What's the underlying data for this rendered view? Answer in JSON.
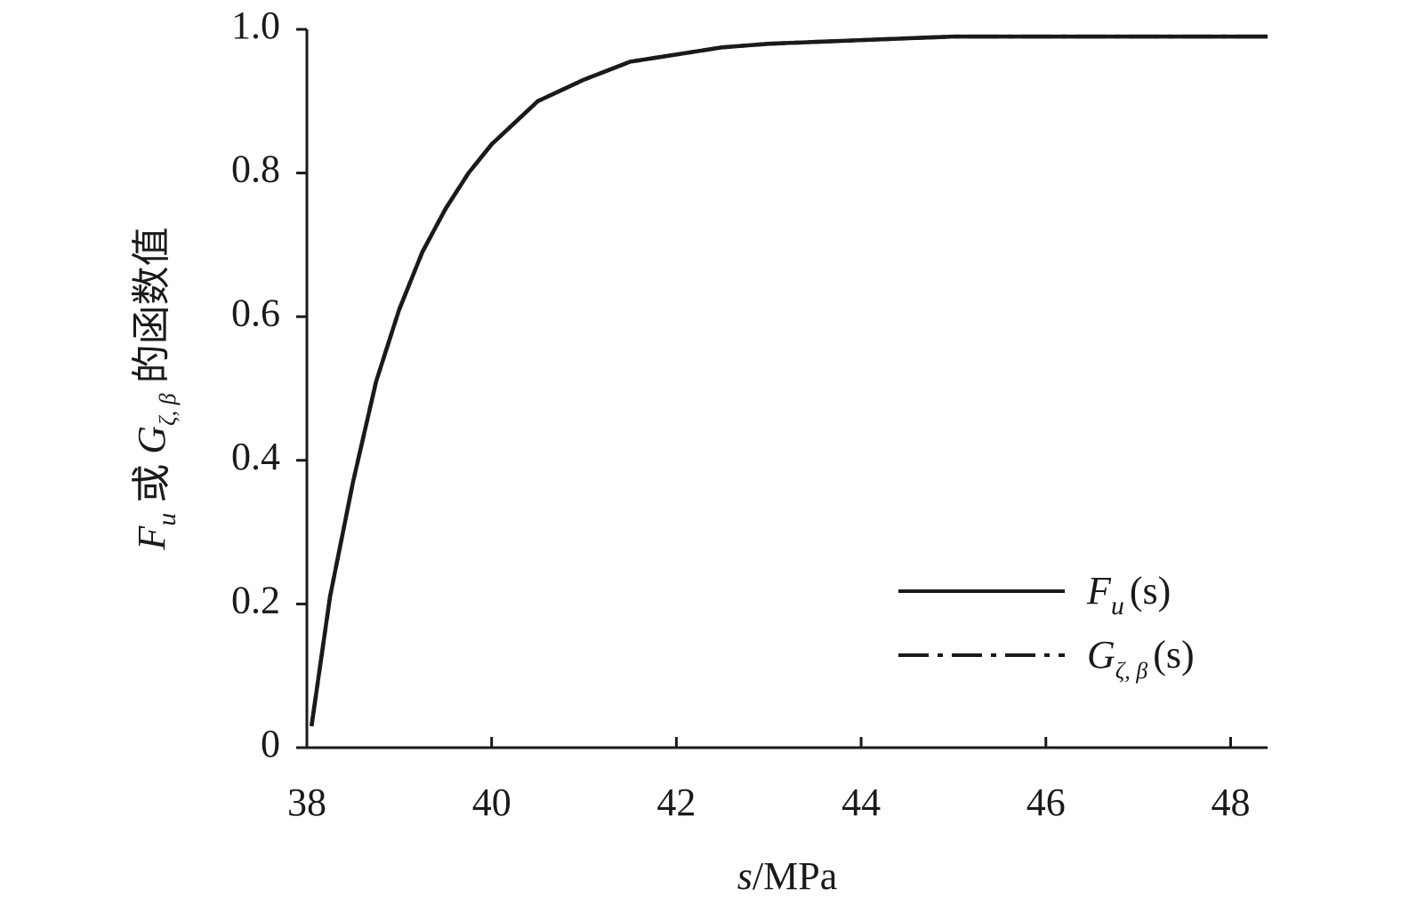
{
  "chart_data": {
    "type": "line",
    "xlabel": [
      "s",
      "/MPa"
    ],
    "ylabel": [
      "F",
      "u",
      " 或 ",
      "G",
      "ζ, β",
      " 的函数值"
    ],
    "xlim": [
      38,
      48.4
    ],
    "ylim": [
      0,
      1
    ],
    "xticks": [
      38,
      40,
      42,
      44,
      46,
      48
    ],
    "yticks": [
      0,
      0.2,
      0.4,
      0.6,
      0.8,
      {
        "value": 1,
        "label": "1.0"
      }
    ],
    "x": [
      38.05,
      38.25,
      38.5,
      38.75,
      39,
      39.25,
      39.5,
      39.75,
      40,
      40.5,
      41,
      41.5,
      42,
      42.5,
      43,
      44,
      45,
      46,
      47,
      48,
      48.4
    ],
    "series": [
      {
        "name": [
          "F",
          "u",
          "(s)"
        ],
        "color": "#1a1a1a",
        "style": "solid",
        "values": [
          0.03,
          0.21,
          0.37,
          0.51,
          0.61,
          0.69,
          0.75,
          0.8,
          0.84,
          0.9,
          0.93,
          0.955,
          0.965,
          0.975,
          0.98,
          0.985,
          0.99,
          0.99,
          0.99,
          0.99,
          0.99
        ]
      },
      {
        "name": [
          "G",
          "ζ, β",
          "(s)"
        ],
        "color": "#1a1a1a",
        "style": "dashdot",
        "values": [
          0.03,
          0.21,
          0.37,
          0.51,
          0.61,
          0.69,
          0.75,
          0.8,
          0.84,
          0.9,
          0.93,
          0.955,
          0.965,
          0.975,
          0.98,
          0.985,
          0.99,
          0.99,
          0.99,
          0.99,
          0.99
        ]
      }
    ]
  }
}
